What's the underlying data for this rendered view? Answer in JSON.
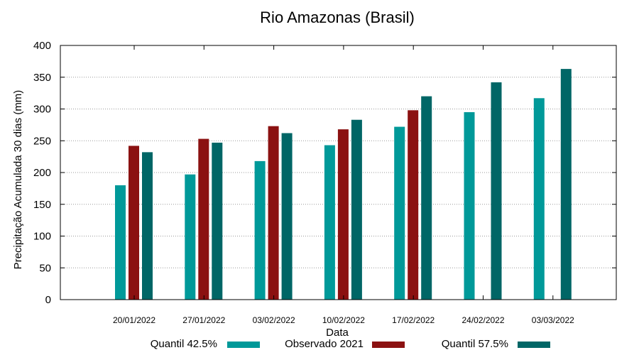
{
  "chart_data": {
    "type": "bar",
    "title": "Rio Amazonas (Brasil)",
    "xlabel": "Data",
    "ylabel": "Precipitação Acumulada 30 dias (mm)",
    "ylim": [
      0,
      400
    ],
    "yticks": [
      0,
      50,
      100,
      150,
      200,
      250,
      300,
      350,
      400
    ],
    "grid": true,
    "legend_position": "bottom",
    "categories": [
      "20/01/2022",
      "27/01/2022",
      "03/02/2022",
      "10/02/2022",
      "17/02/2022",
      "24/02/2022",
      "03/03/2022"
    ],
    "series": [
      {
        "name": "Quantil 42.5%",
        "color": "#009999",
        "values": [
          180,
          197,
          218,
          243,
          272,
          295,
          317
        ]
      },
      {
        "name": "Observado 2021",
        "color": "#8b1111",
        "values": [
          242,
          253,
          273,
          268,
          298,
          null,
          null
        ]
      },
      {
        "name": "Quantil 57.5%",
        "color": "#006666",
        "values": [
          232,
          247,
          262,
          283,
          320,
          342,
          363
        ]
      }
    ]
  }
}
